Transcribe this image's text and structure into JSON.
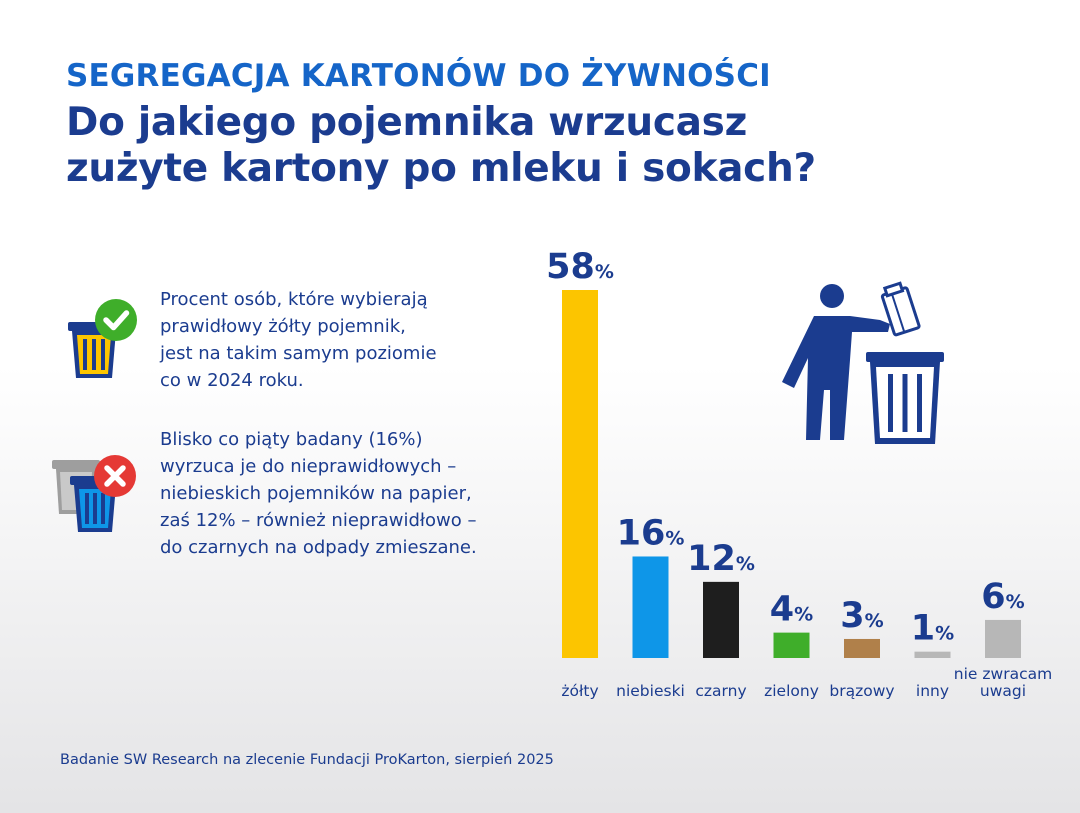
{
  "header": {
    "kicker": "SEGREGACJA KARTONÓW DO ŻYWNOŚCI",
    "question_line1": "Do jakiego pojemnika wrzucasz",
    "question_line2": "zużyte kartony po mleku i sokach?"
  },
  "notes": [
    {
      "icon": "yellow-bin-check-icon",
      "text": "Procent osób, które wybierają\nprawidłowy żółty pojemnik,\njest na takim samym poziomie\nco w 2024 roku."
    },
    {
      "icon": "blue-bin-cross-icon",
      "text": "Blisko co piąty badany (16%)\nwyrzuca je do nieprawidłowych –\nniebieskich pojemników na papier,\nzaś 12% – również nieprawidłowo –\ndo czarnych na odpady zmieszane."
    }
  ],
  "colors": {
    "accent": "#1565c8",
    "navy": "#1b3c8f",
    "check_green": "#3fae2a",
    "cross_red": "#e53935"
  },
  "chart_data": {
    "type": "bar",
    "categories": [
      [
        "żółty"
      ],
      [
        "niebieski"
      ],
      [
        "czarny"
      ],
      [
        "zielony"
      ],
      [
        "brązowy"
      ],
      [
        "inny"
      ],
      [
        "nie zwracam",
        "uwagi"
      ]
    ],
    "values": [
      58,
      16,
      12,
      4,
      3,
      1,
      6
    ],
    "unit": "%",
    "colors": [
      "#fcc500",
      "#0e96e8",
      "#1e1e1e",
      "#3fae2a",
      "#b0804a",
      "#b7b7b7",
      "#b7b7b7"
    ],
    "ylim": [
      0,
      58
    ],
    "grid": false,
    "legend": "none"
  },
  "illustration": {
    "icon": "person-throwing-carton-into-bin-icon"
  },
  "footer": {
    "source": "Badanie SW Research na zlecenie Fundacji ProKarton, sierpień 2025"
  }
}
